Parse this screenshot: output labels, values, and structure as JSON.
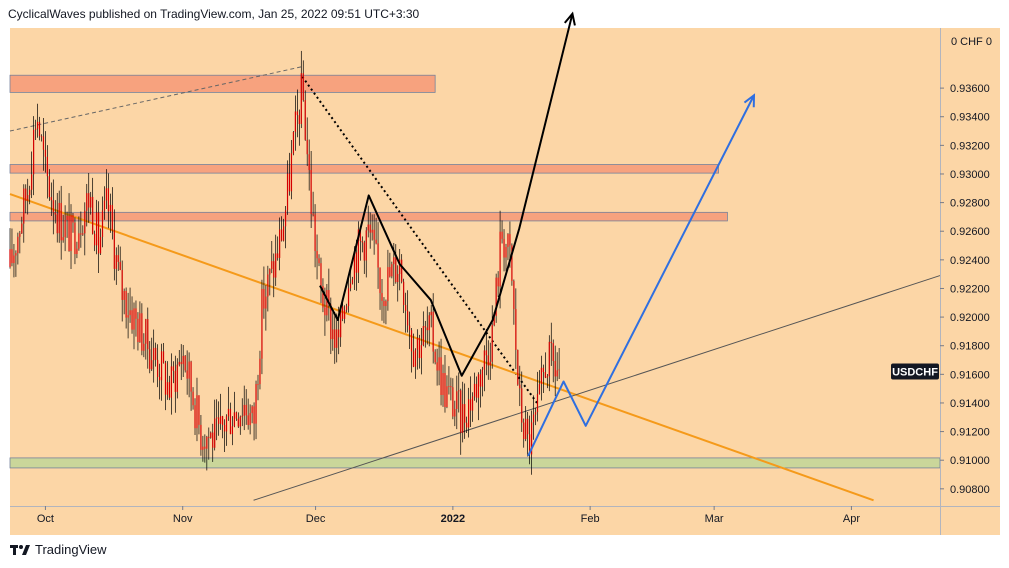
{
  "header": {
    "publisher": "CyclicalWaves",
    "text": "CyclicalWaves published on TradingView.com, Jan 25, 2022 09:51 UTC+3:30"
  },
  "footer": {
    "brand": "TradingView",
    "logo_icon": "tradingview-logo-icon"
  },
  "colors": {
    "plot_background": "#fcd6a6",
    "candle": "#d40000",
    "candle_wick": "#000000",
    "resistance_zone": "#f7a07c",
    "support_zone": "#c8d79a",
    "trendline_orange": "#f59a1a",
    "projection_black": "#000000",
    "projection_blue": "#2f6fe0",
    "symbol_badge": "#131722"
  },
  "chart_data": {
    "type": "candlestick",
    "symbol": "USDCHF",
    "currency_label": "0 CHF 0",
    "last_price": 0.9162,
    "ylim": [
      0.9068,
      0.9402
    ],
    "y_ticks": [
      "0.93600",
      "0.93400",
      "0.93200",
      "0.93000",
      "0.92800",
      "0.92600",
      "0.92400",
      "0.92200",
      "0.92000",
      "0.91800",
      "0.91600",
      "0.91400",
      "0.91200",
      "0.91000",
      "0.90800"
    ],
    "x_ticks": [
      "Oct",
      "Nov",
      "Dec",
      "2022",
      "Feb",
      "Mar",
      "Apr"
    ],
    "x_range": [
      "2021-09-23",
      "2022-04-21"
    ],
    "x_tick_dates": [
      "2021-10-01",
      "2021-11-01",
      "2021-12-01",
      "2022-01-01",
      "2022-02-01",
      "2022-03-01",
      "2022-04-01"
    ],
    "price_path": [
      {
        "date": "2021-09-23",
        "price": 0.9235
      },
      {
        "date": "2021-09-27",
        "price": 0.929
      },
      {
        "date": "2021-09-29",
        "price": 0.9345
      },
      {
        "date": "2021-10-01",
        "price": 0.93
      },
      {
        "date": "2021-10-04",
        "price": 0.927
      },
      {
        "date": "2021-10-07",
        "price": 0.9255
      },
      {
        "date": "2021-10-11",
        "price": 0.9285
      },
      {
        "date": "2021-10-13",
        "price": 0.925
      },
      {
        "date": "2021-10-15",
        "price": 0.928
      },
      {
        "date": "2021-10-18",
        "price": 0.922
      },
      {
        "date": "2021-10-21",
        "price": 0.92
      },
      {
        "date": "2021-10-25",
        "price": 0.9175
      },
      {
        "date": "2021-10-27",
        "price": 0.9165
      },
      {
        "date": "2021-10-29",
        "price": 0.915
      },
      {
        "date": "2021-11-01",
        "price": 0.9175
      },
      {
        "date": "2021-11-03",
        "price": 0.915
      },
      {
        "date": "2021-11-05",
        "price": 0.912
      },
      {
        "date": "2021-11-09",
        "price": 0.9115
      },
      {
        "date": "2021-11-11",
        "price": 0.913
      },
      {
        "date": "2021-11-15",
        "price": 0.914
      },
      {
        "date": "2021-11-17",
        "price": 0.9125
      },
      {
        "date": "2021-11-19",
        "price": 0.921
      },
      {
        "date": "2021-11-22",
        "price": 0.924
      },
      {
        "date": "2021-11-24",
        "price": 0.927
      },
      {
        "date": "2021-11-26",
        "price": 0.932
      },
      {
        "date": "2021-11-28",
        "price": 0.936
      },
      {
        "date": "2021-11-30",
        "price": 0.928
      },
      {
        "date": "2021-12-02",
        "price": 0.922
      },
      {
        "date": "2021-12-06",
        "price": 0.918
      },
      {
        "date": "2021-12-09",
        "price": 0.924
      },
      {
        "date": "2021-12-13",
        "price": 0.926
      },
      {
        "date": "2021-12-16",
        "price": 0.922
      },
      {
        "date": "2021-12-20",
        "price": 0.924
      },
      {
        "date": "2021-12-23",
        "price": 0.918
      },
      {
        "date": "2021-12-27",
        "price": 0.919
      },
      {
        "date": "2021-12-30",
        "price": 0.915
      },
      {
        "date": "2022-01-03",
        "price": 0.913
      },
      {
        "date": "2022-01-06",
        "price": 0.915
      },
      {
        "date": "2022-01-10",
        "price": 0.919
      },
      {
        "date": "2022-01-12",
        "price": 0.926
      },
      {
        "date": "2022-01-14",
        "price": 0.924
      },
      {
        "date": "2022-01-16",
        "price": 0.914
      },
      {
        "date": "2022-01-18",
        "price": 0.911
      },
      {
        "date": "2022-01-20",
        "price": 0.913
      },
      {
        "date": "2022-01-22",
        "price": 0.917
      },
      {
        "date": "2022-01-25",
        "price": 0.9162
      }
    ],
    "candle_count": 280,
    "horizontal_zones": [
      {
        "date_start": "2021-09-23",
        "date_end": "2021-12-28",
        "low": 0.9357,
        "high": 0.9369,
        "color": "#f7a07c"
      },
      {
        "date_start": "2021-09-23",
        "date_end": "2022-03-02",
        "low": 0.93006,
        "high": 0.93066,
        "color": "#f7a07c"
      },
      {
        "date_start": "2021-09-23",
        "date_end": "2022-03-04",
        "low": 0.92672,
        "high": 0.92732,
        "color": "#f7a07c"
      },
      {
        "date_start": "2021-09-23",
        "date_end": "2022-04-21",
        "low": 0.90946,
        "high": 0.91016,
        "color": "#c8d79a"
      }
    ],
    "trendlines": [
      {
        "style": "dashed",
        "color": "#666666",
        "start": {
          "date": "2021-09-23",
          "price": 0.933
        },
        "end": {
          "date": "2021-11-28",
          "price": 0.9375
        }
      },
      {
        "style": "dotted",
        "color": "#000000",
        "start": {
          "date": "2021-11-28",
          "price": 0.9368
        },
        "end": {
          "date": "2022-01-20",
          "price": 0.914
        }
      },
      {
        "style": "solid",
        "color": "#f59a1a",
        "start": {
          "date": "2021-09-23",
          "price": 0.9286
        },
        "end": {
          "date": "2022-04-06",
          "price": 0.9072
        }
      },
      {
        "style": "solid",
        "color": "#555555",
        "start": {
          "date": "2021-11-17",
          "price": 0.9072
        },
        "end": {
          "date": "2022-04-21",
          "price": 0.9229
        }
      }
    ],
    "projection_paths": [
      {
        "name": "",
        "color": "#000000",
        "points": [
          {
            "date": "2021-12-02",
            "price": 0.9222
          },
          {
            "date": "2021-12-06",
            "price": 0.9198
          },
          {
            "date": "2021-12-13",
            "price": 0.9285
          },
          {
            "date": "2021-12-20",
            "price": 0.9237
          },
          {
            "date": "2021-12-27",
            "price": 0.9212
          },
          {
            "date": "2022-01-03",
            "price": 0.9159
          },
          {
            "date": "2022-01-10",
            "price": 0.9198
          },
          {
            "date": "2022-01-16",
            "price": 0.9262
          },
          {
            "date": "2022-01-28",
            "price": 0.9412
          }
        ]
      },
      {
        "name": "",
        "color": "#2f6fe0",
        "points": [
          {
            "date": "2022-01-18",
            "price": 0.9103
          },
          {
            "date": "2022-01-26",
            "price": 0.9155
          },
          {
            "date": "2022-01-31",
            "price": 0.9124
          },
          {
            "date": "2022-03-10",
            "price": 0.9355
          }
        ]
      }
    ]
  }
}
